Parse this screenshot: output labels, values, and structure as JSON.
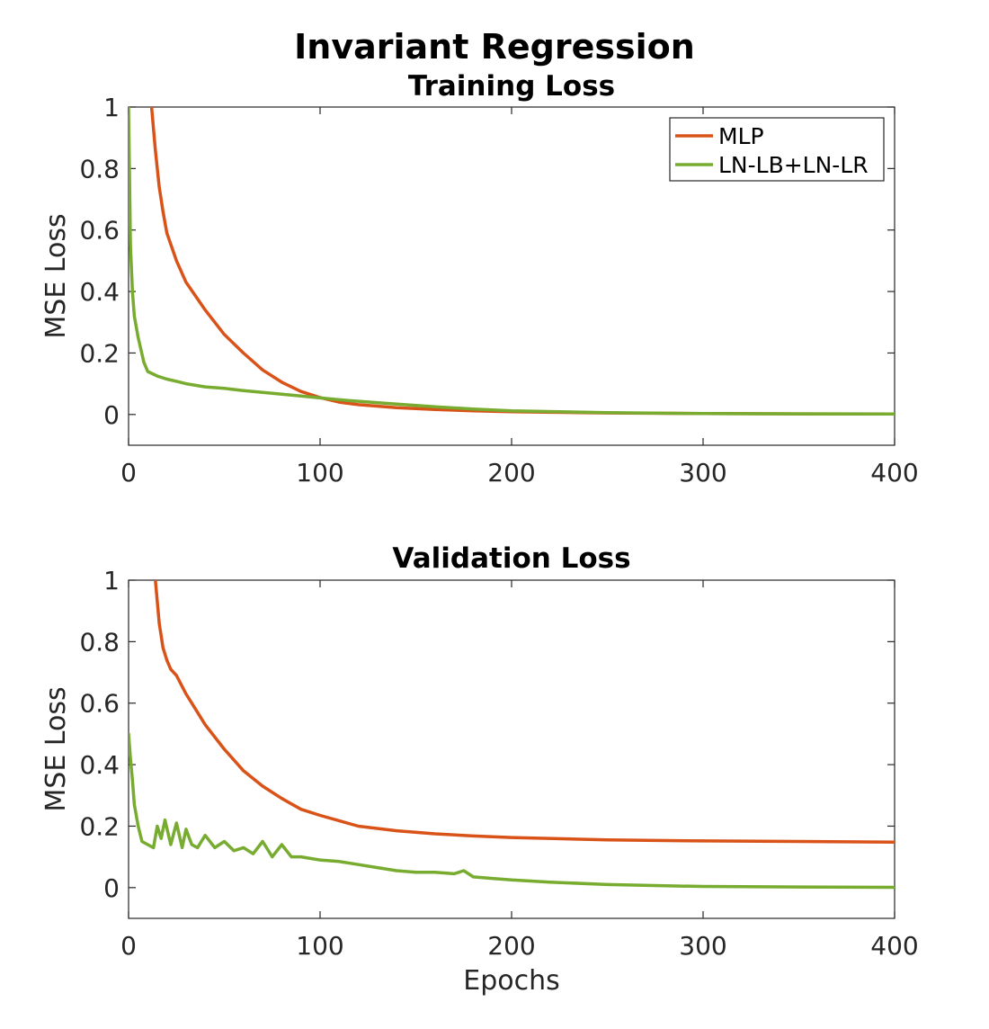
{
  "figure": {
    "title": "Invariant Regression"
  },
  "chart_data": [
    {
      "type": "line",
      "title": "Training Loss",
      "xlabel": "",
      "ylabel": "MSE Loss",
      "xlim": [
        0,
        400
      ],
      "ylim": [
        -0.1,
        1
      ],
      "xticks": [
        0,
        100,
        200,
        300,
        400
      ],
      "xtick_labels": [
        "0",
        "100",
        "200",
        "300",
        "400"
      ],
      "yticks": [
        0,
        0.2,
        0.4,
        0.6,
        0.8,
        1
      ],
      "ytick_labels": [
        "0",
        "0.2",
        "0.4",
        "0.6",
        "0.8",
        "1"
      ],
      "grid": false,
      "legend": "top-right",
      "series": [
        {
          "name": "MLP",
          "color": "#D95319",
          "x": [
            12,
            14,
            16,
            18,
            20,
            25,
            30,
            40,
            50,
            60,
            70,
            80,
            90,
            100,
            110,
            120,
            140,
            160,
            180,
            200,
            250,
            300,
            350,
            400
          ],
          "y": [
            1.0,
            0.86,
            0.74,
            0.66,
            0.59,
            0.5,
            0.43,
            0.34,
            0.26,
            0.2,
            0.145,
            0.105,
            0.075,
            0.055,
            0.04,
            0.032,
            0.022,
            0.016,
            0.012,
            0.009,
            0.005,
            0.003,
            0.002,
            0.0015
          ]
        },
        {
          "name": "LN-LB+LN-LR",
          "color": "#77AC30",
          "x": [
            0,
            1,
            2,
            3,
            5,
            8,
            10,
            15,
            20,
            25,
            30,
            40,
            50,
            60,
            70,
            80,
            90,
            100,
            110,
            120,
            140,
            160,
            180,
            200,
            250,
            300,
            350,
            400
          ],
          "y": [
            1.0,
            0.55,
            0.4,
            0.32,
            0.25,
            0.17,
            0.14,
            0.125,
            0.115,
            0.108,
            0.1,
            0.09,
            0.085,
            0.078,
            0.072,
            0.066,
            0.06,
            0.054,
            0.048,
            0.043,
            0.034,
            0.025,
            0.018,
            0.012,
            0.006,
            0.003,
            0.002,
            0.0015
          ]
        }
      ]
    },
    {
      "type": "line",
      "title": "Validation Loss",
      "xlabel": "Epochs",
      "ylabel": "MSE Loss",
      "xlim": [
        0,
        400
      ],
      "ylim": [
        -0.1,
        1
      ],
      "xticks": [
        0,
        100,
        200,
        300,
        400
      ],
      "xtick_labels": [
        "0",
        "100",
        "200",
        "300",
        "400"
      ],
      "yticks": [
        0,
        0.2,
        0.4,
        0.6,
        0.8,
        1
      ],
      "ytick_labels": [
        "0",
        "0.2",
        "0.4",
        "0.6",
        "0.8",
        "1"
      ],
      "grid": false,
      "series": [
        {
          "name": "MLP",
          "color": "#D95319",
          "x": [
            14,
            16,
            18,
            20,
            22,
            25,
            30,
            33,
            35,
            40,
            50,
            60,
            70,
            80,
            90,
            100,
            120,
            140,
            160,
            180,
            200,
            250,
            300,
            350,
            400
          ],
          "y": [
            1.0,
            0.86,
            0.78,
            0.74,
            0.71,
            0.69,
            0.63,
            0.6,
            0.58,
            0.53,
            0.45,
            0.38,
            0.33,
            0.29,
            0.255,
            0.235,
            0.2,
            0.185,
            0.175,
            0.168,
            0.163,
            0.155,
            0.152,
            0.15,
            0.148
          ]
        },
        {
          "name": "LN-LB+LN-LR",
          "color": "#77AC30",
          "x": [
            0,
            1,
            2,
            3,
            5,
            7,
            10,
            13,
            15,
            17,
            19,
            22,
            25,
            28,
            30,
            33,
            36,
            40,
            45,
            50,
            55,
            60,
            65,
            70,
            75,
            80,
            85,
            90,
            100,
            110,
            120,
            130,
            140,
            150,
            160,
            170,
            175,
            180,
            190,
            200,
            220,
            250,
            280,
            300,
            350,
            400
          ],
          "y": [
            0.5,
            0.42,
            0.35,
            0.27,
            0.2,
            0.15,
            0.14,
            0.13,
            0.2,
            0.16,
            0.22,
            0.14,
            0.21,
            0.13,
            0.19,
            0.14,
            0.13,
            0.17,
            0.13,
            0.15,
            0.12,
            0.13,
            0.11,
            0.15,
            0.1,
            0.14,
            0.1,
            0.1,
            0.09,
            0.085,
            0.075,
            0.065,
            0.055,
            0.05,
            0.05,
            0.045,
            0.055,
            0.035,
            0.03,
            0.025,
            0.018,
            0.01,
            0.006,
            0.004,
            0.002,
            0.001
          ]
        }
      ]
    }
  ]
}
